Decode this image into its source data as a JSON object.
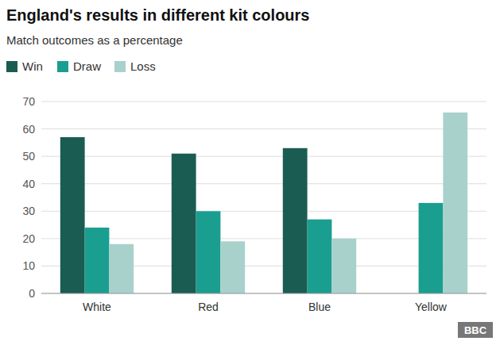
{
  "chart_data": {
    "type": "bar",
    "title": "England's results in different kit colours",
    "subtitle": "Match outcomes as a percentage",
    "categories": [
      "White",
      "Red",
      "Blue",
      "Yellow"
    ],
    "series": [
      {
        "name": "Win",
        "color": "#1a5c52",
        "values": [
          57,
          51,
          53,
          0
        ]
      },
      {
        "name": "Draw",
        "color": "#1a9e8f",
        "values": [
          24,
          30,
          27,
          33
        ]
      },
      {
        "name": "Loss",
        "color": "#a8d1cc",
        "values": [
          18,
          19,
          20,
          66
        ]
      }
    ],
    "ylim": [
      0,
      70
    ],
    "yticks": [
      0,
      10,
      20,
      30,
      40,
      50,
      60,
      70
    ],
    "grid": true,
    "legend": "top-left",
    "annotations": [
      "BBC"
    ]
  }
}
